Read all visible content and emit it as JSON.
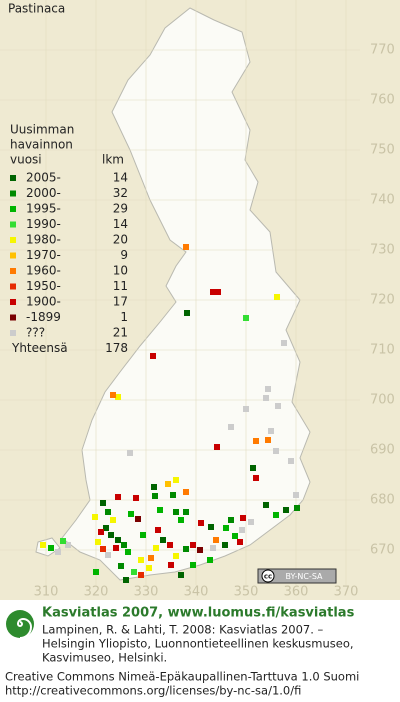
{
  "title": "Pastinaca",
  "legend": {
    "heading": [
      "Uusimman",
      "havainnon",
      "vuosi"
    ],
    "count_heading": "lkm",
    "items": [
      {
        "label": "2005-",
        "count": 14,
        "color": "#006400"
      },
      {
        "label": "2000-",
        "count": 32,
        "color": "#008a00"
      },
      {
        "label": "1995-",
        "count": 29,
        "color": "#00b400"
      },
      {
        "label": "1990-",
        "count": 14,
        "color": "#33dd33"
      },
      {
        "label": "1980-",
        "count": 20,
        "color": "#f6f600"
      },
      {
        "label": "1970-",
        "count": 9,
        "color": "#ffc000"
      },
      {
        "label": "1960-",
        "count": 10,
        "color": "#ff7a00"
      },
      {
        "label": "1950-",
        "count": 11,
        "color": "#e62a00"
      },
      {
        "label": "1900-",
        "count": 17,
        "color": "#c80000"
      },
      {
        "label": "-1899",
        "count": 1,
        "color": "#7a0000"
      },
      {
        "label": "???",
        "count": 21,
        "color": "#cccccc"
      }
    ],
    "total_label": "Yhteensä",
    "total": 178
  },
  "axes": {
    "yticks": [
      770,
      760,
      750,
      740,
      730,
      720,
      710,
      700,
      690,
      680,
      670
    ],
    "xticks": [
      310,
      320,
      330,
      340,
      350,
      360,
      370
    ]
  },
  "badge": {
    "icon": "cc",
    "text": "BY-NC-SA"
  },
  "footer": {
    "title": "Kasviatlas 2007, www.luomus.fi/kasviatlas",
    "citation": [
      "Lampinen, R. & Lahti, T. 2008: Kasviatlas 2007. –",
      "Helsingin Yliopisto, Luonnontieteellinen keskusmuseo,",
      "Kasvimuseo, Helsinki."
    ],
    "license": [
      "Creative Commons Nimeä-Epäkaupallinen-Tarttuva 1.0 Suomi",
      "http://creativecommons.org/licenses/by-nc-sa/1.0/fi"
    ]
  }
}
